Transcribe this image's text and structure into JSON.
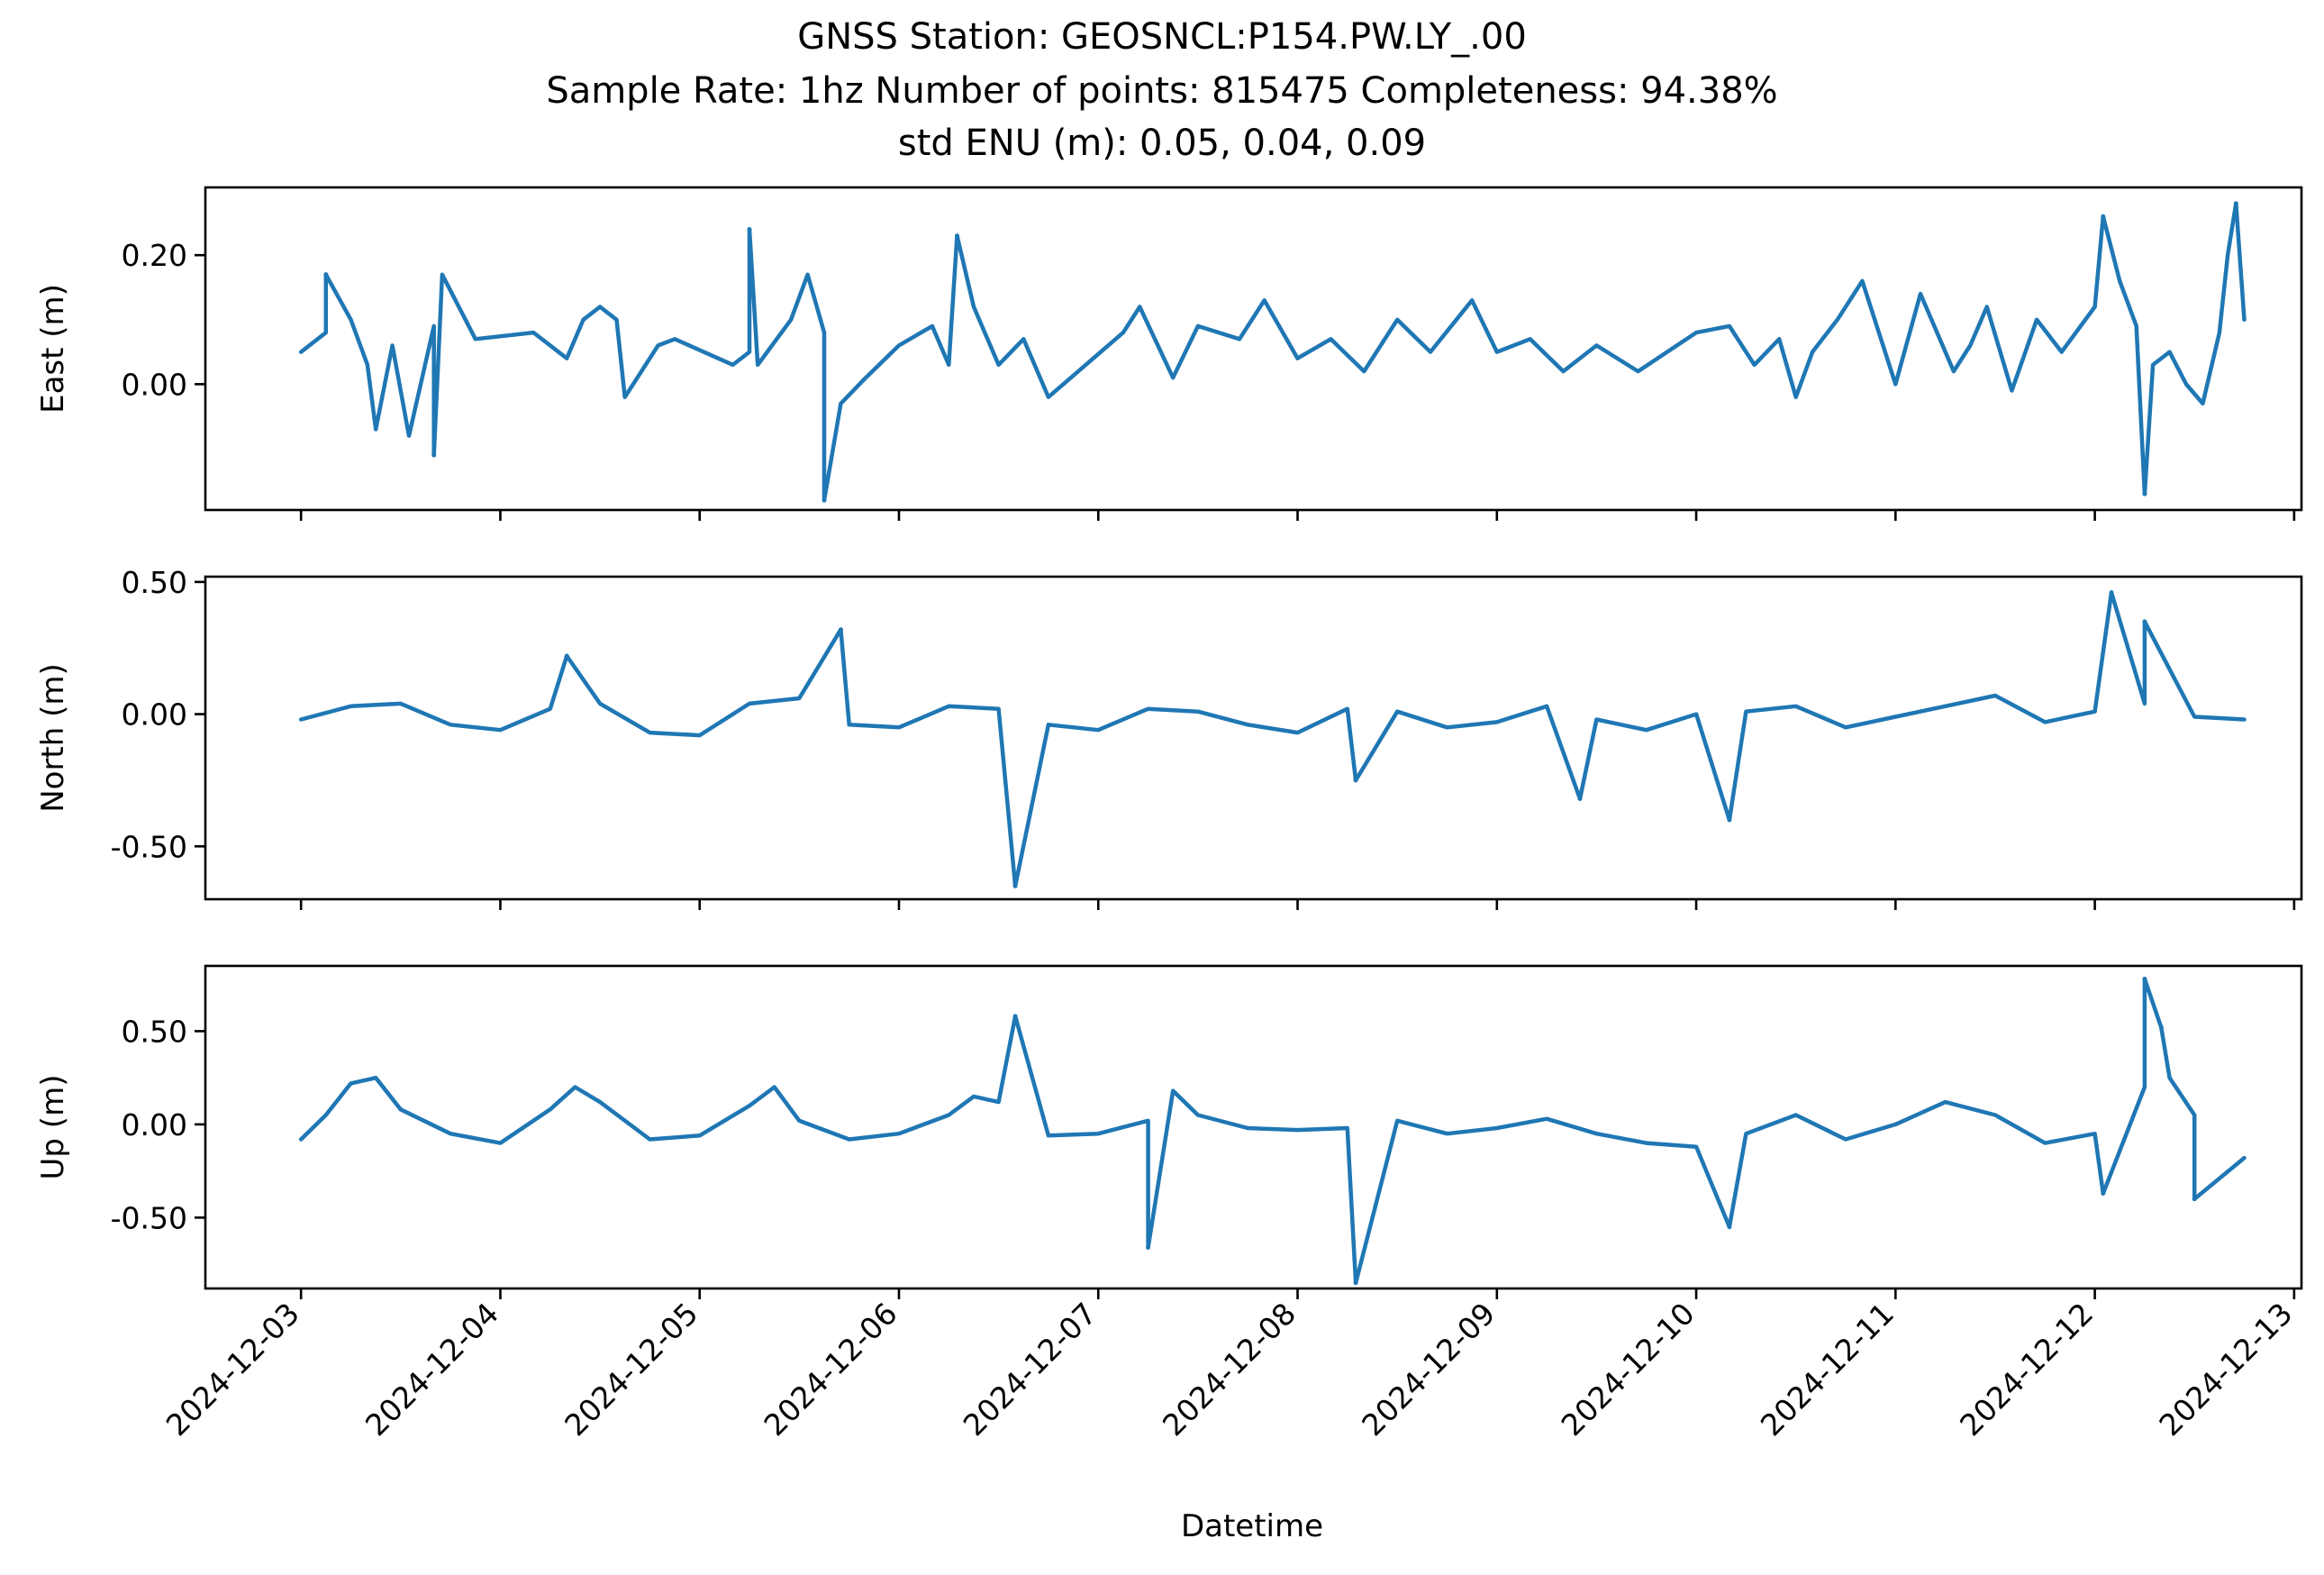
{
  "figure": {
    "title_lines": [
      "GNSS Station: GEOSNCL:P154.PW.LY_.00",
      "Sample Rate: 1hz   Number of points: 815475    Completeness:  94.38%",
      "std ENU (m):  0.05, 0.04, 0.09"
    ],
    "xlabel": "Datetime"
  },
  "chart_data": [
    {
      "type": "line",
      "ylabel": "East (m)",
      "line_color": "#1f77b4",
      "xlim": [
        "2024-12-02T12:29",
        "2024-12-13T00:53"
      ],
      "ylim": [
        -0.195,
        0.305
      ],
      "xticks": [
        "2024-12-03",
        "2024-12-04",
        "2024-12-05",
        "2024-12-06",
        "2024-12-07",
        "2024-12-08",
        "2024-12-09",
        "2024-12-10",
        "2024-12-11",
        "2024-12-12",
        "2024-12-13"
      ],
      "x_tick_labels_visible": false,
      "yticks": [
        0.2,
        0.0
      ],
      "ytick_labels": [
        "0.20",
        "0.00"
      ],
      "x": [
        "2024-12-03T00:00",
        "2024-12-03T03:00",
        "2024-12-03T06:00",
        "2024-12-03T08:00",
        "2024-12-03T09:00",
        "2024-12-03T11:00",
        "2024-12-03T13:00",
        "2024-12-03T16:00",
        "2024-12-03T17:00",
        "2024-12-03T21:00",
        "2024-12-04T04:00",
        "2024-12-04T08:00",
        "2024-12-04T10:00",
        "2024-12-04T12:00",
        "2024-12-04T14:00",
        "2024-12-04T15:00",
        "2024-12-04T19:00",
        "2024-12-04T21:00",
        "2024-12-05T04:00",
        "2024-12-05T06:00",
        "2024-12-05T07:00",
        "2024-12-05T11:00",
        "2024-12-05T13:00",
        "2024-12-05T15:00",
        "2024-12-05T17:00",
        "2024-12-05T20:00",
        "2024-12-06T00:00",
        "2024-12-06T04:00",
        "2024-12-06T06:00",
        "2024-12-06T09:00",
        "2024-12-06T12:00",
        "2024-12-06T15:00",
        "2024-12-06T18:00",
        "2024-12-07T03:00",
        "2024-12-07T05:00",
        "2024-12-07T09:00",
        "2024-12-07T12:00",
        "2024-12-07T17:00",
        "2024-12-07T20:00",
        "2024-12-08T00:00",
        "2024-12-08T04:00",
        "2024-12-08T08:00",
        "2024-12-08T12:00",
        "2024-12-08T16:00",
        "2024-12-08T21:00",
        "2024-12-09T00:00",
        "2024-12-09T04:00",
        "2024-12-09T08:00",
        "2024-12-09T12:00",
        "2024-12-09T17:00",
        "2024-12-10T00:00",
        "2024-12-10T04:00",
        "2024-12-10T07:00",
        "2024-12-10T10:00",
        "2024-12-10T12:00",
        "2024-12-10T14:00",
        "2024-12-10T17:00",
        "2024-12-10T20:00",
        "2024-12-11T00:00",
        "2024-12-11T03:00",
        "2024-12-11T07:00",
        "2024-12-11T09:00",
        "2024-12-11T11:00",
        "2024-12-11T14:00",
        "2024-12-11T17:00",
        "2024-12-11T20:00",
        "2024-12-12T00:00",
        "2024-12-12T03:00",
        "2024-12-12T05:00",
        "2024-12-12T07:00",
        "2024-12-12T09:00",
        "2024-12-12T11:00",
        "2024-12-12T13:00",
        "2024-12-12T15:00",
        "2024-12-12T16:00",
        "2024-12-12T18:00"
      ],
      "y": [
        0.05,
        0.08,
        0.1,
        0.03,
        -0.07,
        0.06,
        -0.08,
        0.09,
        0.17,
        0.07,
        0.08,
        0.04,
        0.1,
        0.12,
        0.1,
        -0.02,
        0.06,
        0.07,
        0.03,
        0.05,
        0.03,
        0.1,
        0.17,
        0.08,
        -0.03,
        0.01,
        0.06,
        0.09,
        0.03,
        0.12,
        0.03,
        0.07,
        -0.02,
        0.08,
        0.12,
        0.01,
        0.09,
        0.07,
        0.13,
        0.04,
        0.07,
        0.02,
        0.1,
        0.05,
        0.13,
        0.05,
        0.07,
        0.02,
        0.06,
        0.02,
        0.08,
        0.09,
        0.03,
        0.07,
        -0.02,
        0.05,
        0.1,
        0.16,
        0.0,
        0.14,
        0.02,
        0.06,
        0.12,
        -0.01,
        0.1,
        0.05,
        0.12,
        0.16,
        0.09,
        0.03,
        0.05,
        0.0,
        -0.03,
        0.08,
        0.2,
        0.1
      ],
      "spikes": [
        {
          "x": "2024-12-03T03:00",
          "y": 0.17
        },
        {
          "x": "2024-12-03T16:00",
          "y": -0.11
        },
        {
          "x": "2024-12-05T06:00",
          "y": 0.24
        },
        {
          "x": "2024-12-05T15:00",
          "y": -0.18
        },
        {
          "x": "2024-12-06T07:00",
          "y": 0.23
        },
        {
          "x": "2024-12-12T01:00",
          "y": 0.26
        },
        {
          "x": "2024-12-12T06:00",
          "y": -0.17
        },
        {
          "x": "2024-12-12T17:00",
          "y": 0.28
        }
      ]
    },
    {
      "type": "line",
      "ylabel": "North (m)",
      "line_color": "#1f77b4",
      "xlim": [
        "2024-12-02T12:29",
        "2024-12-13T00:53"
      ],
      "ylim": [
        -0.7,
        0.52
      ],
      "xticks": [
        "2024-12-03",
        "2024-12-04",
        "2024-12-05",
        "2024-12-06",
        "2024-12-07",
        "2024-12-08",
        "2024-12-09",
        "2024-12-10",
        "2024-12-11",
        "2024-12-12",
        "2024-12-13"
      ],
      "x_tick_labels_visible": false,
      "yticks": [
        0.5,
        0.0,
        -0.5
      ],
      "ytick_labels": [
        "0.50",
        "0.00",
        "-0.50"
      ],
      "x": [
        "2024-12-03T00:00",
        "2024-12-03T06:00",
        "2024-12-03T12:00",
        "2024-12-03T18:00",
        "2024-12-04T00:00",
        "2024-12-04T06:00",
        "2024-12-04T12:00",
        "2024-12-04T18:00",
        "2024-12-05T00:00",
        "2024-12-05T06:00",
        "2024-12-05T12:00",
        "2024-12-05T18:00",
        "2024-12-06T00:00",
        "2024-12-06T06:00",
        "2024-12-06T12:00",
        "2024-12-06T18:00",
        "2024-12-07T00:00",
        "2024-12-07T06:00",
        "2024-12-07T12:00",
        "2024-12-07T18:00",
        "2024-12-08T00:00",
        "2024-12-08T06:00",
        "2024-12-08T12:00",
        "2024-12-08T18:00",
        "2024-12-09T00:00",
        "2024-12-09T06:00",
        "2024-12-09T12:00",
        "2024-12-09T18:00",
        "2024-12-10T00:00",
        "2024-12-10T06:00",
        "2024-12-10T12:00",
        "2024-12-10T18:00",
        "2024-12-11T00:00",
        "2024-12-11T06:00",
        "2024-12-11T12:00",
        "2024-12-11T18:00",
        "2024-12-12T00:00",
        "2024-12-12T06:00",
        "2024-12-12T12:00",
        "2024-12-12T18:00"
      ],
      "y": [
        -0.02,
        0.03,
        0.04,
        -0.04,
        -0.06,
        0.02,
        0.04,
        -0.07,
        -0.08,
        0.04,
        0.06,
        -0.04,
        -0.05,
        0.03,
        0.02,
        -0.04,
        -0.06,
        0.02,
        0.01,
        -0.04,
        -0.07,
        0.02,
        0.01,
        -0.05,
        -0.03,
        0.03,
        -0.02,
        -0.06,
        0.0,
        0.01,
        0.03,
        -0.05,
        -0.01,
        0.03,
        0.07,
        -0.03,
        0.01,
        0.04,
        -0.01,
        -0.02
      ],
      "spikes": [
        {
          "x": "2024-12-04T08:00",
          "y": 0.22
        },
        {
          "x": "2024-12-05T17:00",
          "y": 0.32
        },
        {
          "x": "2024-12-06T14:00",
          "y": -0.65
        },
        {
          "x": "2024-12-08T07:00",
          "y": -0.25
        },
        {
          "x": "2024-12-09T10:00",
          "y": -0.32
        },
        {
          "x": "2024-12-10T04:00",
          "y": -0.4
        },
        {
          "x": "2024-12-12T02:00",
          "y": 0.46
        },
        {
          "x": "2024-12-12T06:00",
          "y": 0.35
        }
      ]
    },
    {
      "type": "line",
      "ylabel": "Up (m)",
      "line_color": "#1f77b4",
      "xlim": [
        "2024-12-02T12:29",
        "2024-12-13T00:53"
      ],
      "ylim": [
        -0.88,
        0.85
      ],
      "xticks": [
        "2024-12-03",
        "2024-12-04",
        "2024-12-05",
        "2024-12-06",
        "2024-12-07",
        "2024-12-08",
        "2024-12-09",
        "2024-12-10",
        "2024-12-11",
        "2024-12-12",
        "2024-12-13"
      ],
      "x_tick_labels_visible": true,
      "yticks": [
        0.5,
        0.0,
        -0.5
      ],
      "ytick_labels": [
        "0.50",
        "0.00",
        "-0.50"
      ],
      "x": [
        "2024-12-03T00:00",
        "2024-12-03T03:00",
        "2024-12-03T06:00",
        "2024-12-03T09:00",
        "2024-12-03T12:00",
        "2024-12-03T18:00",
        "2024-12-04T00:00",
        "2024-12-04T06:00",
        "2024-12-04T09:00",
        "2024-12-04T12:00",
        "2024-12-04T18:00",
        "2024-12-05T00:00",
        "2024-12-05T06:00",
        "2024-12-05T09:00",
        "2024-12-05T12:00",
        "2024-12-05T18:00",
        "2024-12-06T00:00",
        "2024-12-06T06:00",
        "2024-12-06T09:00",
        "2024-12-06T12:00",
        "2024-12-06T18:00",
        "2024-12-07T00:00",
        "2024-12-07T06:00",
        "2024-12-07T09:00",
        "2024-12-07T12:00",
        "2024-12-07T18:00",
        "2024-12-08T00:00",
        "2024-12-08T06:00",
        "2024-12-08T12:00",
        "2024-12-08T18:00",
        "2024-12-09T00:00",
        "2024-12-09T06:00",
        "2024-12-09T12:00",
        "2024-12-09T18:00",
        "2024-12-10T00:00",
        "2024-12-10T06:00",
        "2024-12-10T12:00",
        "2024-12-10T18:00",
        "2024-12-11T00:00",
        "2024-12-11T06:00",
        "2024-12-11T12:00",
        "2024-12-11T18:00",
        "2024-12-12T00:00",
        "2024-12-12T06:00",
        "2024-12-12T09:00",
        "2024-12-12T12:00",
        "2024-12-12T18:00"
      ],
      "y": [
        -0.08,
        0.05,
        0.22,
        0.25,
        0.08,
        -0.05,
        -0.1,
        0.08,
        0.2,
        0.12,
        -0.08,
        -0.06,
        0.1,
        0.2,
        0.02,
        -0.08,
        -0.05,
        0.05,
        0.15,
        0.12,
        -0.06,
        -0.05,
        0.02,
        0.18,
        0.05,
        -0.02,
        -0.03,
        -0.02,
        0.02,
        -0.05,
        -0.02,
        0.03,
        -0.05,
        -0.1,
        -0.12,
        -0.05,
        0.05,
        -0.08,
        0.0,
        0.12,
        0.05,
        -0.1,
        -0.05,
        0.2,
        0.25,
        0.05,
        -0.18
      ],
      "spikes": [
        {
          "x": "2024-12-06T14:00",
          "y": 0.58
        },
        {
          "x": "2024-12-07T06:00",
          "y": -0.66
        },
        {
          "x": "2024-12-08T07:00",
          "y": -0.85
        },
        {
          "x": "2024-12-10T04:00",
          "y": -0.55
        },
        {
          "x": "2024-12-12T06:00",
          "y": 0.78
        },
        {
          "x": "2024-12-12T08:00",
          "y": 0.52
        },
        {
          "x": "2024-12-12T01:00",
          "y": -0.37
        },
        {
          "x": "2024-12-12T12:00",
          "y": -0.4
        }
      ]
    }
  ]
}
